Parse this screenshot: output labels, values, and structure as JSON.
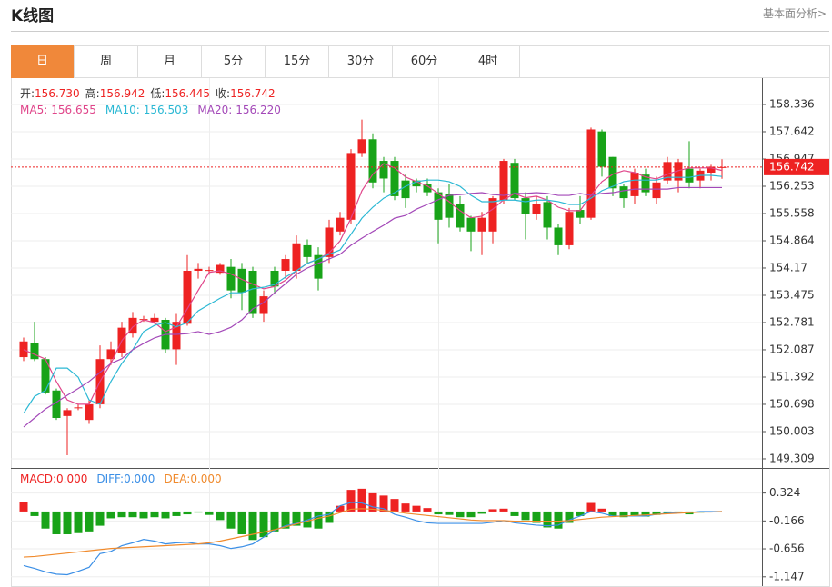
{
  "header": {
    "title": "K线图",
    "link": "基本面分析>"
  },
  "tabs": [
    "日",
    "周",
    "月",
    "5分",
    "15分",
    "30分",
    "60分",
    "4时"
  ],
  "active_tab": 0,
  "chart_data": {
    "type": "candlestick",
    "up_color": "#ee2222",
    "down_color": "#18a318",
    "price_info": [
      {
        "label": "开:",
        "value": "156.730"
      },
      {
        "label": "高:",
        "value": "156.942"
      },
      {
        "label": "低:",
        "value": "156.445"
      },
      {
        "label": "收:",
        "value": "156.742"
      }
    ],
    "open": [
      151.9,
      152.25,
      151.85,
      151.05,
      150.4,
      150.6,
      150.3,
      150.7,
      151.85,
      152.0,
      152.5,
      152.85,
      152.8,
      152.85,
      152.1,
      152.75,
      154.1,
      154.1,
      154.05,
      154.2,
      154.15,
      154.1,
      153.0,
      154.1,
      154.1,
      154.1,
      154.75,
      154.5,
      154.45,
      155.1,
      155.4,
      157.1,
      157.45,
      156.9,
      156.9,
      156.4,
      156.4,
      156.3,
      156.1,
      156.05,
      155.8,
      155.45,
      155.1,
      155.1,
      155.9,
      156.85,
      155.95,
      155.55,
      155.85,
      155.2,
      154.75,
      155.65,
      155.45,
      157.65,
      157.0,
      156.25,
      156.0,
      156.55,
      155.95,
      156.4,
      156.4,
      156.7,
      156.4,
      156.6,
      156.73
    ],
    "high": [
      152.4,
      152.8,
      151.9,
      151.1,
      150.6,
      150.7,
      150.8,
      152.2,
      152.3,
      152.8,
      153.05,
      152.95,
      153.0,
      152.9,
      153.0,
      154.5,
      154.3,
      154.2,
      154.3,
      154.4,
      154.3,
      154.2,
      153.6,
      154.2,
      154.5,
      155.0,
      154.9,
      154.7,
      155.4,
      155.6,
      157.2,
      157.95,
      157.6,
      157.0,
      157.0,
      156.55,
      156.45,
      156.45,
      156.2,
      156.3,
      156.0,
      155.5,
      155.6,
      156.0,
      156.95,
      156.95,
      156.1,
      156.0,
      156.0,
      155.3,
      155.7,
      156.0,
      157.75,
      157.7,
      157.0,
      156.3,
      156.7,
      156.7,
      156.5,
      157.0,
      156.95,
      157.4,
      156.7,
      156.8,
      156.942
    ],
    "low": [
      151.8,
      151.8,
      150.95,
      150.3,
      149.4,
      150.55,
      150.2,
      150.6,
      151.7,
      151.9,
      152.4,
      152.8,
      152.75,
      152.0,
      151.7,
      152.7,
      153.9,
      154.0,
      154.0,
      153.4,
      153.1,
      152.9,
      152.8,
      153.5,
      153.9,
      153.9,
      154.3,
      153.6,
      154.3,
      155.0,
      155.3,
      157.0,
      156.2,
      156.1,
      155.9,
      155.7,
      156.1,
      156.0,
      154.8,
      155.2,
      155.1,
      154.6,
      154.5,
      154.8,
      155.8,
      155.9,
      154.9,
      155.4,
      154.9,
      154.5,
      154.65,
      155.3,
      155.4,
      156.5,
      156.0,
      155.7,
      155.8,
      156.0,
      155.8,
      156.3,
      156.1,
      156.2,
      156.2,
      156.4,
      156.445
    ],
    "close": [
      152.3,
      151.85,
      151.0,
      150.35,
      150.55,
      150.62,
      150.7,
      151.85,
      152.1,
      152.65,
      152.9,
      152.87,
      152.9,
      152.1,
      152.8,
      154.1,
      154.15,
      154.12,
      154.25,
      153.6,
      153.55,
      153.0,
      153.45,
      153.7,
      154.4,
      154.8,
      154.45,
      153.9,
      155.2,
      155.45,
      157.1,
      157.45,
      156.35,
      156.45,
      156.0,
      155.95,
      156.25,
      156.1,
      155.4,
      155.45,
      155.2,
      155.1,
      155.45,
      155.95,
      156.9,
      155.95,
      155.55,
      155.8,
      155.2,
      154.75,
      155.6,
      155.45,
      157.7,
      156.75,
      156.2,
      155.95,
      156.6,
      156.1,
      156.35,
      156.87,
      156.87,
      156.35,
      156.65,
      156.75,
      156.742
    ],
    "series": [
      {
        "name": "MA5:",
        "current": "156.655",
        "color": "#e0458a",
        "values": [
          152.09,
          151.97,
          151.85,
          151.28,
          150.81,
          150.7,
          150.7,
          151.28,
          151.74,
          152.32,
          152.67,
          152.85,
          152.78,
          152.55,
          152.67,
          153.13,
          153.6,
          154.06,
          154.1,
          154.02,
          153.88,
          153.76,
          153.64,
          153.7,
          153.86,
          154.1,
          154.29,
          154.4,
          154.56,
          154.86,
          155.44,
          156.14,
          156.56,
          156.83,
          156.72,
          156.49,
          156.37,
          156.26,
          156.07,
          155.86,
          155.63,
          155.45,
          155.49,
          155.67,
          155.91,
          156.07,
          155.96,
          156.0,
          155.9,
          155.72,
          155.63,
          155.63,
          156.02,
          156.37,
          156.56,
          156.65,
          156.6,
          156.49,
          156.44,
          156.56,
          156.65,
          156.72,
          156.72,
          156.72,
          156.655
        ]
      },
      {
        "name": "MA10:",
        "current": "156.503",
        "color": "#2bb8d4",
        "values": [
          150.47,
          150.9,
          151.05,
          151.62,
          151.62,
          151.39,
          150.81,
          150.7,
          151.28,
          151.74,
          152.09,
          152.55,
          152.71,
          152.78,
          152.67,
          152.78,
          153.08,
          153.24,
          153.4,
          153.54,
          153.54,
          153.64,
          153.68,
          153.75,
          153.94,
          154.1,
          154.29,
          154.4,
          154.52,
          154.63,
          155.03,
          155.44,
          155.72,
          155.95,
          156.09,
          156.25,
          156.37,
          156.41,
          156.41,
          156.37,
          156.25,
          156.02,
          155.86,
          155.86,
          155.9,
          155.9,
          155.86,
          155.9,
          155.9,
          155.86,
          155.79,
          155.79,
          155.95,
          156.14,
          156.25,
          156.37,
          156.41,
          156.41,
          156.41,
          156.48,
          156.48,
          156.48,
          156.53,
          156.53,
          156.503
        ]
      },
      {
        "name": "MA20:",
        "current": "156.220",
        "color": "#a348b8",
        "values": [
          150.12,
          150.35,
          150.58,
          150.75,
          150.93,
          151.1,
          151.28,
          151.51,
          151.74,
          151.86,
          152.09,
          152.25,
          152.39,
          152.48,
          152.48,
          152.5,
          152.55,
          152.48,
          152.55,
          152.66,
          152.85,
          153.13,
          153.29,
          153.54,
          153.77,
          154.01,
          154.17,
          154.29,
          154.4,
          154.52,
          154.75,
          154.93,
          155.1,
          155.26,
          155.44,
          155.51,
          155.67,
          155.79,
          155.91,
          156.02,
          156.04,
          156.07,
          156.09,
          156.04,
          156.02,
          156.07,
          156.07,
          156.09,
          156.07,
          156.02,
          156.02,
          156.07,
          156.02,
          156.07,
          156.09,
          156.14,
          156.18,
          156.18,
          156.18,
          156.18,
          156.22,
          156.22,
          156.22,
          156.22,
          156.22
        ]
      }
    ],
    "ylim": [
      149.077,
      158.961
    ],
    "yticks": [
      158.336,
      157.642,
      156.947,
      156.253,
      155.558,
      154.864,
      154.17,
      153.475,
      152.781,
      152.087,
      151.392,
      150.698,
      150.003,
      149.309
    ],
    "grid": true,
    "macd": {
      "histogram": {
        "name": "MACD:",
        "current": "0.000",
        "values": [
          0.16,
          -0.08,
          -0.3,
          -0.4,
          -0.4,
          -0.38,
          -0.35,
          -0.25,
          -0.12,
          -0.1,
          -0.1,
          -0.12,
          -0.1,
          -0.12,
          -0.08,
          -0.05,
          -0.02,
          -0.06,
          -0.15,
          -0.3,
          -0.4,
          -0.5,
          -0.45,
          -0.35,
          -0.3,
          -0.25,
          -0.28,
          -0.3,
          -0.2,
          0.1,
          0.38,
          0.4,
          0.32,
          0.28,
          0.22,
          0.14,
          0.1,
          0.06,
          -0.05,
          -0.06,
          -0.1,
          -0.1,
          -0.04,
          0.04,
          0.05,
          -0.08,
          -0.15,
          -0.2,
          -0.28,
          -0.3,
          -0.2,
          -0.08,
          0.15,
          0.05,
          -0.08,
          -0.1,
          -0.08,
          -0.09,
          -0.06,
          -0.03,
          -0.02,
          -0.05,
          -0.02,
          -0.01,
          0.0
        ]
      },
      "series": [
        {
          "name": "DIFF:",
          "current": "0.000",
          "color": "#3b8fe6",
          "values": [
            -0.95,
            -1.0,
            -1.06,
            -1.1,
            -1.11,
            -1.05,
            -0.98,
            -0.74,
            -0.7,
            -0.6,
            -0.55,
            -0.49,
            -0.52,
            -0.57,
            -0.55,
            -0.54,
            -0.57,
            -0.57,
            -0.6,
            -0.65,
            -0.62,
            -0.57,
            -0.45,
            -0.33,
            -0.25,
            -0.21,
            -0.15,
            -0.08,
            -0.05,
            0.1,
            0.16,
            0.15,
            0.08,
            0.05,
            -0.05,
            -0.1,
            -0.16,
            -0.2,
            -0.21,
            -0.21,
            -0.21,
            -0.21,
            -0.21,
            -0.19,
            -0.16,
            -0.2,
            -0.22,
            -0.24,
            -0.25,
            -0.24,
            -0.15,
            -0.08,
            0.0,
            -0.03,
            -0.08,
            -0.08,
            -0.08,
            -0.08,
            -0.05,
            -0.03,
            -0.02,
            -0.02,
            0.0,
            0.0,
            0.0
          ]
        },
        {
          "name": "DEA:",
          "current": "0.000",
          "color": "#f08a2c",
          "values": [
            -0.8,
            -0.79,
            -0.77,
            -0.75,
            -0.73,
            -0.71,
            -0.69,
            -0.67,
            -0.65,
            -0.64,
            -0.63,
            -0.62,
            -0.61,
            -0.6,
            -0.59,
            -0.58,
            -0.57,
            -0.55,
            -0.52,
            -0.48,
            -0.44,
            -0.4,
            -0.36,
            -0.32,
            -0.27,
            -0.22,
            -0.17,
            -0.12,
            -0.08,
            -0.02,
            0.04,
            0.05,
            0.04,
            0.02,
            0.0,
            -0.03,
            -0.05,
            -0.07,
            -0.09,
            -0.11,
            -0.13,
            -0.15,
            -0.16,
            -0.16,
            -0.16,
            -0.17,
            -0.17,
            -0.17,
            -0.17,
            -0.17,
            -0.16,
            -0.14,
            -0.12,
            -0.1,
            -0.09,
            -0.08,
            -0.07,
            -0.06,
            -0.05,
            -0.04,
            -0.03,
            -0.02,
            -0.01,
            -0.01,
            0.0
          ]
        }
      ],
      "ylim": [
        -1.31,
        0.765
      ],
      "yticks": [
        0.324,
        -0.166,
        -0.656,
        -1.147
      ]
    }
  }
}
